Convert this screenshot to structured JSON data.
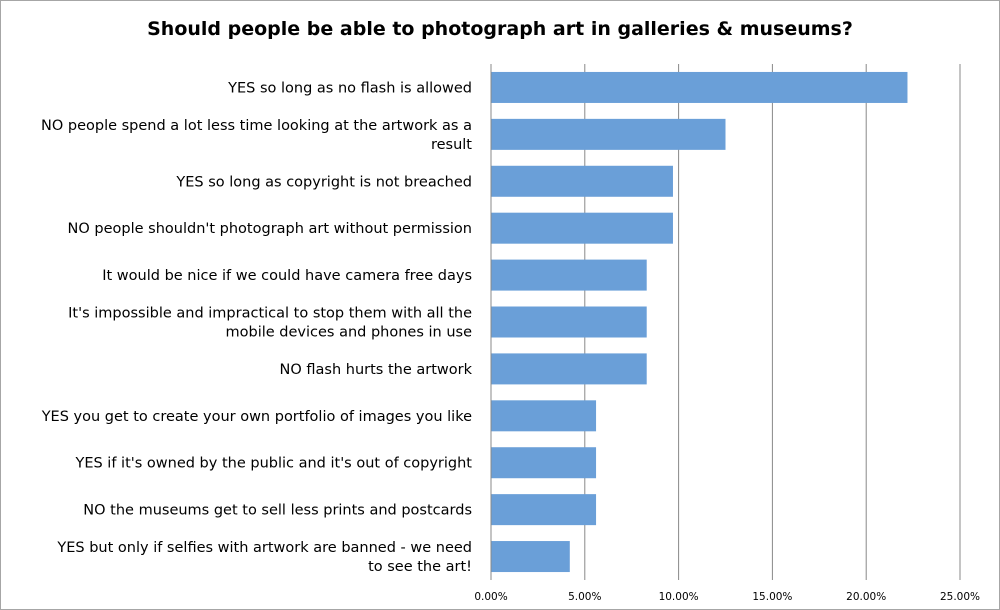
{
  "chart_data": {
    "type": "bar",
    "orientation": "horizontal",
    "title": "Should people be able to photograph art in galleries & museums?",
    "categories": [
      "YES so long as no flash is allowed",
      "NO people spend a lot less time looking at the artwork as a result",
      "YES so long as copyright is not breached",
      "NO people shouldn't photograph art without permission",
      "It would be nice if we could have camera free days",
      "It's impossible and impractical to stop them with all the mobile devices and phones in use",
      "NO flash hurts the artwork",
      "YES you get to create your own portfolio of images you like",
      "YES if it's owned by the public and it's out of copyright",
      "NO the museums get to sell less prints and postcards",
      "YES but only if selfies with artwork are banned - we need to see the art!"
    ],
    "category_lines": [
      [
        "YES so long as no flash is allowed"
      ],
      [
        "NO people spend a lot less time looking at the artwork as a",
        "result"
      ],
      [
        "YES so long as copyright is not breached"
      ],
      [
        "NO people shouldn't photograph art without permission"
      ],
      [
        "It would be nice if we could have camera free days"
      ],
      [
        "It's impossible and impractical to stop them with all the",
        "mobile devices and phones in use"
      ],
      [
        "NO flash hurts the artwork"
      ],
      [
        "YES you get to create your own portfolio of images you like"
      ],
      [
        "YES if it's owned by the public and it's out of copyright"
      ],
      [
        "NO the museums get to sell less prints and postcards"
      ],
      [
        "YES but only if selfies with artwork are banned - we need",
        "to see the art!"
      ]
    ],
    "values": [
      22.2,
      12.5,
      9.7,
      9.7,
      8.3,
      8.3,
      8.3,
      5.6,
      5.6,
      5.6,
      4.2
    ],
    "xlim": [
      0,
      25
    ],
    "ticks": [
      0,
      5,
      10,
      15,
      20,
      25
    ],
    "tick_labels": [
      "0.00%",
      "5.00%",
      "10.00%",
      "15.00%",
      "20.00%",
      "25.00%"
    ],
    "xlabel": "",
    "ylabel": "",
    "grid": "vertical",
    "bar_color": "#6a9fd8"
  }
}
